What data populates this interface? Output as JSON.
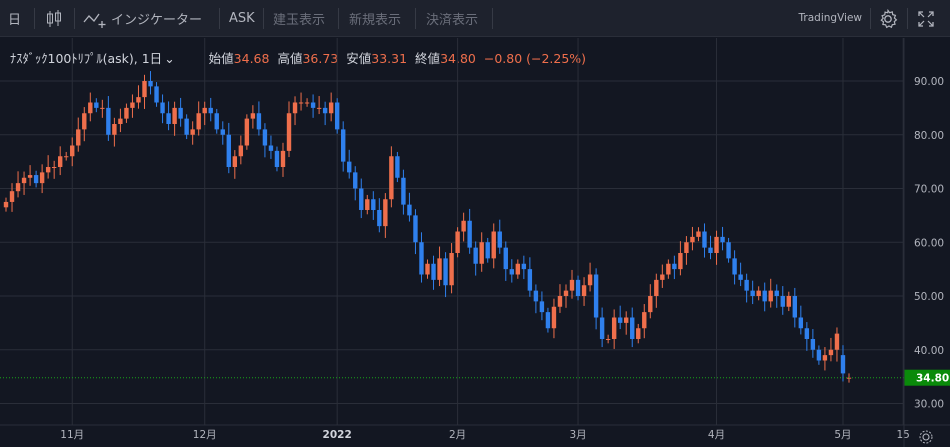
{
  "toolbar": {
    "period_label": "日",
    "indicator_label": "インジケーター",
    "ask_label": "ASK",
    "order1_label": "建玉表示",
    "order2_label": "新規表示",
    "order3_label": "決済表示",
    "brand": "TradingView",
    "icons": [
      "candlestick-icon",
      "indicator-icon",
      "gear-icon",
      "fullscreen-icon"
    ]
  },
  "legend": {
    "symbol": "ﾅｽﾀﾞｯｸ100ﾄﾘﾌﾟﾙ(ask), 1日",
    "open_label": "始値",
    "open": "34.68",
    "high_label": "高値",
    "high": "36.73",
    "low_label": "安値",
    "low": "33.31",
    "close_label": "終値",
    "close": "34.80",
    "change": "−0.80 (−2.25%)"
  },
  "colors": {
    "up": "#ef6f4c",
    "down": "#2f80ed",
    "bg": "#131722",
    "last_price_bg": "#0a8a0a"
  },
  "chart_data": {
    "type": "candlestick",
    "title": "ﾅｽﾀﾞｯｸ100ﾄﾘﾌﾟﾙ(ask), 1日",
    "ylim": [
      26,
      98
    ],
    "yticks": [
      "30.00",
      "40.00",
      "50.00",
      "60.00",
      "70.00",
      "80.00",
      "90.00"
    ],
    "last_price": "34.80",
    "time_ticks": [
      {
        "label": "11月",
        "i": 11
      },
      {
        "label": "12月",
        "i": 33
      },
      {
        "label": "2022",
        "i": 55
      },
      {
        "label": "2月",
        "i": 75
      },
      {
        "label": "3月",
        "i": 95
      },
      {
        "label": "4月",
        "i": 118
      },
      {
        "label": "5月",
        "i": 139
      },
      {
        "label": "15",
        "i": 149
      }
    ],
    "closes": [
      67.5,
      69.5,
      71,
      72,
      72.5,
      71,
      73,
      74,
      74,
      76,
      76,
      78,
      81,
      84,
      86,
      85,
      85,
      80,
      82,
      83,
      85,
      86,
      87,
      90,
      89,
      86,
      84,
      82,
      85,
      83,
      80,
      81,
      84,
      85,
      84,
      81,
      80,
      74,
      76,
      78,
      83,
      84,
      81,
      78,
      77,
      74,
      77,
      84,
      86,
      86,
      86,
      85,
      85,
      84,
      86,
      81,
      75,
      73,
      70,
      66,
      68,
      66,
      63,
      68,
      76,
      72,
      67,
      65,
      60,
      54,
      56,
      53,
      57,
      52,
      58,
      62,
      64,
      59,
      56,
      60,
      57,
      62,
      59,
      55,
      54,
      56,
      55,
      51,
      49,
      47,
      44,
      48,
      50,
      51,
      53,
      50,
      52,
      54,
      46,
      42,
      42,
      46,
      45,
      46,
      42,
      44,
      47,
      50,
      53,
      54,
      56,
      55,
      58,
      60,
      61,
      62,
      59,
      58,
      61,
      60,
      57,
      54,
      53,
      51,
      50,
      51,
      49,
      51,
      50,
      48,
      50,
      46,
      44,
      42,
      40,
      38,
      39,
      40,
      43,
      35.6,
      34.8
    ],
    "opens": [
      66.5,
      67.5,
      69.5,
      71,
      72,
      72.5,
      71,
      73,
      74,
      74,
      76,
      76,
      78,
      81,
      84,
      86,
      85,
      85,
      80,
      82,
      83,
      85,
      86,
      87,
      90,
      89,
      86,
      84,
      82,
      85,
      83,
      80,
      81,
      84,
      85,
      84,
      81,
      80,
      74,
      76,
      78,
      83,
      84,
      81,
      78,
      77,
      74,
      77,
      84,
      86,
      86,
      86,
      85,
      85,
      84,
      86,
      81,
      75,
      73,
      70,
      66,
      68,
      66,
      63,
      68,
      76,
      72,
      67,
      65,
      60,
      54,
      56,
      53,
      57,
      52,
      58,
      62,
      64,
      59,
      56,
      60,
      57,
      62,
      59,
      55,
      54,
      56,
      55,
      51,
      49,
      47,
      44,
      48,
      50,
      51,
      53,
      50,
      52,
      54,
      46,
      42,
      42,
      46,
      45,
      46,
      42,
      44,
      47,
      50,
      53,
      54,
      56,
      55,
      58,
      60,
      61,
      62,
      59,
      58,
      61,
      60,
      57,
      54,
      53,
      51,
      50,
      51,
      49,
      51,
      50,
      48,
      50,
      46,
      44,
      42,
      40,
      38,
      39,
      40,
      39,
      34.68
    ]
  }
}
